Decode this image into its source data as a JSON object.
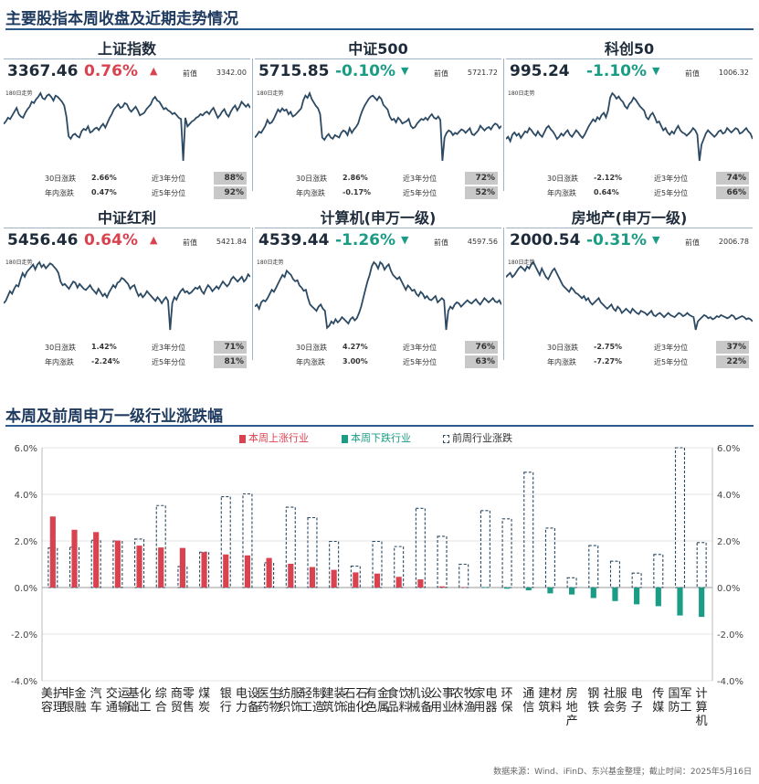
{
  "header": {
    "title": "主要股指本周收盘及近期走势情况"
  },
  "section2": {
    "title": "本周及前周申万一级行业涨跌幅"
  },
  "labels": {
    "prev": "前值",
    "trend180": "180日走势",
    "d30": "30日涨跌",
    "ytd": "年内涨跌",
    "p3y": "近3年分位",
    "p5y": "近5年分位"
  },
  "colors": {
    "up": "#d9434f",
    "down": "#1a9c85",
    "line": "#2c4a63",
    "dashed": "#2c4a63"
  },
  "indices": [
    {
      "name": "上证指数",
      "price": "3367.46",
      "change": "0.76%",
      "dir": "up",
      "arrow": "▲",
      "prev": "3342.00",
      "d30": "2.66%",
      "d30dir": "up",
      "ytd": "0.47%",
      "ytddir": "up",
      "p3y": "88%",
      "p5y": "92%",
      "spark": [
        50,
        52,
        55,
        54,
        57,
        60,
        63,
        58,
        56,
        55,
        59,
        62,
        64,
        68,
        67,
        70,
        72,
        75,
        71,
        70,
        73,
        74,
        72,
        69,
        73,
        72,
        70,
        68,
        65,
        56,
        40,
        38,
        41,
        42,
        40,
        39,
        44,
        46,
        45,
        48,
        43,
        44,
        46,
        47,
        45,
        48,
        50,
        47,
        51,
        55,
        58,
        62,
        64,
        66,
        63,
        64,
        67,
        66,
        62,
        60,
        62,
        64,
        61,
        57,
        58,
        59,
        62,
        64,
        66,
        70,
        72,
        69,
        68,
        65,
        62,
        63,
        61,
        60,
        58,
        59,
        57,
        55,
        54,
        20,
        55,
        48,
        50,
        52,
        53,
        55,
        56,
        58,
        57,
        59,
        60,
        58,
        61,
        63,
        59,
        55,
        57,
        60,
        62,
        58,
        56,
        60,
        63,
        65,
        61,
        64,
        68,
        66,
        64,
        66,
        63
      ]
    },
    {
      "name": "中证500",
      "price": "5715.85",
      "change": "-0.10%",
      "dir": "down",
      "arrow": "▼",
      "prev": "5721.72",
      "d30": "2.86%",
      "d30dir": "up",
      "ytd": "-0.17%",
      "ytddir": "down",
      "p3y": "72%",
      "p5y": "52%",
      "spark": [
        40,
        42,
        45,
        44,
        47,
        50,
        55,
        52,
        53,
        56,
        60,
        64,
        62,
        65,
        63,
        64,
        60,
        62,
        58,
        59,
        61,
        63,
        65,
        72,
        76,
        74,
        78,
        73,
        70,
        67,
        65,
        60,
        40,
        38,
        41,
        43,
        40,
        39,
        42,
        41,
        40,
        44,
        46,
        45,
        42,
        48,
        44,
        47,
        49,
        52,
        58,
        63,
        67,
        70,
        73,
        75,
        76,
        74,
        72,
        75,
        73,
        68,
        66,
        64,
        58,
        55,
        56,
        53,
        57,
        55,
        52,
        53,
        54,
        56,
        50,
        48,
        49,
        52,
        54,
        56,
        55,
        57,
        55,
        58,
        60,
        57,
        56,
        58,
        55,
        20,
        40,
        44,
        46,
        45,
        42,
        44,
        43,
        45,
        47,
        46,
        44,
        46,
        48,
        43,
        42,
        44,
        46,
        50,
        48,
        46,
        48,
        49,
        47,
        50,
        52,
        51,
        48,
        50
      ]
    },
    {
      "name": "科创50",
      "price": "995.24",
      "change": "-1.10%",
      "dir": "down",
      "arrow": "▼",
      "prev": "1006.32",
      "d30": "-2.12%",
      "d30dir": "down",
      "ytd": "0.64%",
      "ytddir": "up",
      "p3y": "74%",
      "p5y": "66%",
      "spark": [
        40,
        42,
        38,
        44,
        46,
        43,
        45,
        41,
        44,
        47,
        46,
        50,
        48,
        45,
        43,
        47,
        44,
        42,
        46,
        50,
        52,
        49,
        47,
        44,
        40,
        42,
        45,
        43,
        46,
        48,
        44,
        42,
        45,
        48,
        46,
        43,
        41,
        44,
        48,
        52,
        55,
        58,
        56,
        60,
        58,
        62,
        64,
        60,
        66,
        78,
        82,
        80,
        77,
        79,
        76,
        74,
        70,
        68,
        72,
        74,
        78,
        76,
        73,
        70,
        68,
        66,
        60,
        58,
        62,
        64,
        60,
        55,
        56,
        52,
        48,
        50,
        46,
        44,
        47,
        45,
        49,
        52,
        48,
        46,
        45,
        43,
        45,
        47,
        50,
        48,
        44,
        20,
        35,
        40,
        45,
        48,
        46,
        44,
        42,
        44,
        47,
        48,
        45,
        46,
        50,
        48,
        46,
        48,
        50,
        49,
        45,
        46,
        48,
        50,
        47,
        45,
        40
      ]
    },
    {
      "name": "中证红利",
      "price": "5456.46",
      "change": "0.64%",
      "dir": "up",
      "arrow": "▲",
      "prev": "5421.84",
      "d30": "1.42%",
      "d30dir": "up",
      "ytd": "-2.24%",
      "ytddir": "down",
      "p3y": "71%",
      "p5y": "81%",
      "spark": [
        40,
        42,
        46,
        50,
        48,
        52,
        55,
        54,
        60,
        65,
        62,
        66,
        68,
        70,
        72,
        68,
        72,
        74,
        70,
        72,
        69,
        71,
        73,
        72,
        70,
        68,
        65,
        58,
        55,
        56,
        54,
        52,
        55,
        58,
        57,
        53,
        56,
        54,
        52,
        51,
        53,
        55,
        52,
        50,
        48,
        52,
        49,
        46,
        48,
        45,
        49,
        52,
        55,
        53,
        57,
        58,
        61,
        60,
        58,
        56,
        52,
        54,
        55,
        50,
        46,
        48,
        45,
        47,
        50,
        48,
        46,
        44,
        42,
        45,
        43,
        40,
        43,
        45,
        42,
        18,
        40,
        45,
        43,
        47,
        50,
        52,
        49,
        50,
        48,
        49,
        51,
        53,
        52,
        54,
        50,
        48,
        52,
        55,
        53,
        50,
        52,
        54,
        52,
        55,
        58,
        56,
        54,
        56,
        60,
        62,
        60,
        58,
        60,
        62,
        58,
        60,
        64,
        62
      ]
    },
    {
      "name": "计算机(申万一级)",
      "price": "4539.44",
      "change": "-1.26%",
      "dir": "down",
      "arrow": "▼",
      "prev": "4597.56",
      "d30": "4.27%",
      "d30dir": "up",
      "ytd": "3.00%",
      "ytddir": "up",
      "p3y": "76%",
      "p5y": "63%",
      "spark": [
        40,
        42,
        38,
        44,
        46,
        45,
        48,
        52,
        56,
        54,
        58,
        62,
        66,
        70,
        68,
        74,
        72,
        70,
        66,
        64,
        65,
        60,
        58,
        55,
        56,
        48,
        42,
        40,
        38,
        36,
        40,
        42,
        38,
        36,
        20,
        22,
        26,
        24,
        28,
        25,
        27,
        30,
        28,
        26,
        24,
        28,
        30,
        27,
        29,
        34,
        40,
        48,
        56,
        64,
        70,
        78,
        82,
        80,
        76,
        82,
        80,
        75,
        78,
        80,
        74,
        70,
        68,
        66,
        68,
        64,
        60,
        56,
        60,
        58,
        55,
        56,
        52,
        50,
        54,
        52,
        48,
        50,
        47,
        46,
        48,
        50,
        44,
        46,
        48,
        46,
        18,
        36,
        40,
        38,
        42,
        44,
        43,
        40,
        42,
        44,
        46,
        44,
        43,
        45,
        47,
        44,
        42,
        45,
        48,
        46,
        44,
        46,
        48,
        45,
        44,
        46,
        42
      ]
    },
    {
      "name": "房地产(申万一级)",
      "price": "2000.54",
      "change": "-0.31%",
      "dir": "down",
      "arrow": "▼",
      "prev": "2006.78",
      "d30": "-2.75%",
      "d30dir": "down",
      "ytd": "-7.27%",
      "ytddir": "down",
      "p3y": "37%",
      "p5y": "22%",
      "spark": [
        70,
        72,
        74,
        70,
        72,
        75,
        78,
        80,
        78,
        76,
        80,
        78,
        82,
        84,
        80,
        76,
        72,
        78,
        74,
        70,
        68,
        72,
        76,
        78,
        74,
        70,
        66,
        62,
        60,
        58,
        56,
        60,
        58,
        55,
        54,
        52,
        50,
        52,
        48,
        50,
        46,
        44,
        46,
        48,
        50,
        46,
        44,
        42,
        40,
        42,
        44,
        40,
        38,
        42,
        40,
        36,
        38,
        40,
        38,
        36,
        40,
        38,
        36,
        35,
        38,
        37,
        36,
        34,
        36,
        38,
        34,
        33,
        35,
        36,
        34,
        32,
        34,
        36,
        34,
        33,
        32,
        34,
        36,
        35,
        33,
        34,
        36,
        34,
        33,
        32,
        20,
        28,
        30,
        32,
        34,
        33,
        31,
        32,
        30,
        31,
        33,
        32,
        34,
        33,
        32,
        31,
        32,
        34,
        33,
        30,
        31,
        32,
        33,
        32,
        30,
        31,
        30,
        28
      ]
    }
  ],
  "chart_data": {
    "type": "bar",
    "title": "本周及前周申万一级行业涨跌幅",
    "categories": [
      "美容护理",
      "非银金融",
      "汽车",
      "交通运输",
      "基础化工",
      "综合",
      "商贸零售",
      "煤炭",
      "银行",
      "电力设备",
      "医药生物",
      "纺织服饰",
      "轻工制造",
      "建筑装饰",
      "石油石化",
      "有色金属",
      "食品饮料",
      "机械设备",
      "公用事业",
      "农林牧渔",
      "家用电器",
      "环保",
      "通信",
      "建筑材料",
      "房地产",
      "钢铁",
      "社会服务",
      "电子",
      "传媒",
      "国防军工",
      "计算机"
    ],
    "series": [
      {
        "name": "本周上涨行业",
        "color": "#d9434f",
        "values": [
          3.05,
          2.48,
          2.38,
          2.02,
          1.8,
          1.72,
          1.7,
          1.52,
          1.42,
          1.38,
          1.27,
          1.02,
          0.88,
          0.76,
          0.65,
          0.6,
          0.46,
          0.35,
          0.05,
          0.02,
          0,
          0,
          0,
          0,
          0,
          0,
          0,
          0,
          0,
          0,
          0
        ]
      },
      {
        "name": "本周下跌行业",
        "color": "#1a9c85",
        "values": [
          0,
          0,
          0,
          0,
          0,
          0,
          0,
          0,
          0,
          0,
          0,
          0,
          0,
          0,
          0,
          0,
          0,
          0,
          0,
          0,
          -0.02,
          -0.05,
          -0.12,
          -0.25,
          -0.3,
          -0.45,
          -0.58,
          -0.72,
          -0.8,
          -1.2,
          -1.26
        ]
      },
      {
        "name": "前周行业涨跌",
        "style": "dashed",
        "values": [
          1.7,
          1.73,
          2.03,
          2.0,
          2.08,
          3.52,
          0.9,
          1.52,
          3.9,
          4.02,
          1.06,
          3.45,
          3.0,
          1.98,
          0.92,
          1.98,
          1.76,
          3.4,
          2.2,
          1.0,
          3.3,
          2.95,
          4.95,
          2.55,
          0.42,
          1.8,
          1.13,
          0.62,
          1.42,
          6.5,
          1.93
        ]
      }
    ],
    "ylim": [
      -4,
      6
    ],
    "yticks": [
      "-4.0%",
      "-2.0%",
      "0.0%",
      "2.0%",
      "4.0%",
      "6.0%"
    ],
    "grid": true,
    "legend": "top-center"
  },
  "footer": {
    "source": "数据来源：Wind、iFinD、东兴基金整理；截止时间：2025年5月16日"
  }
}
